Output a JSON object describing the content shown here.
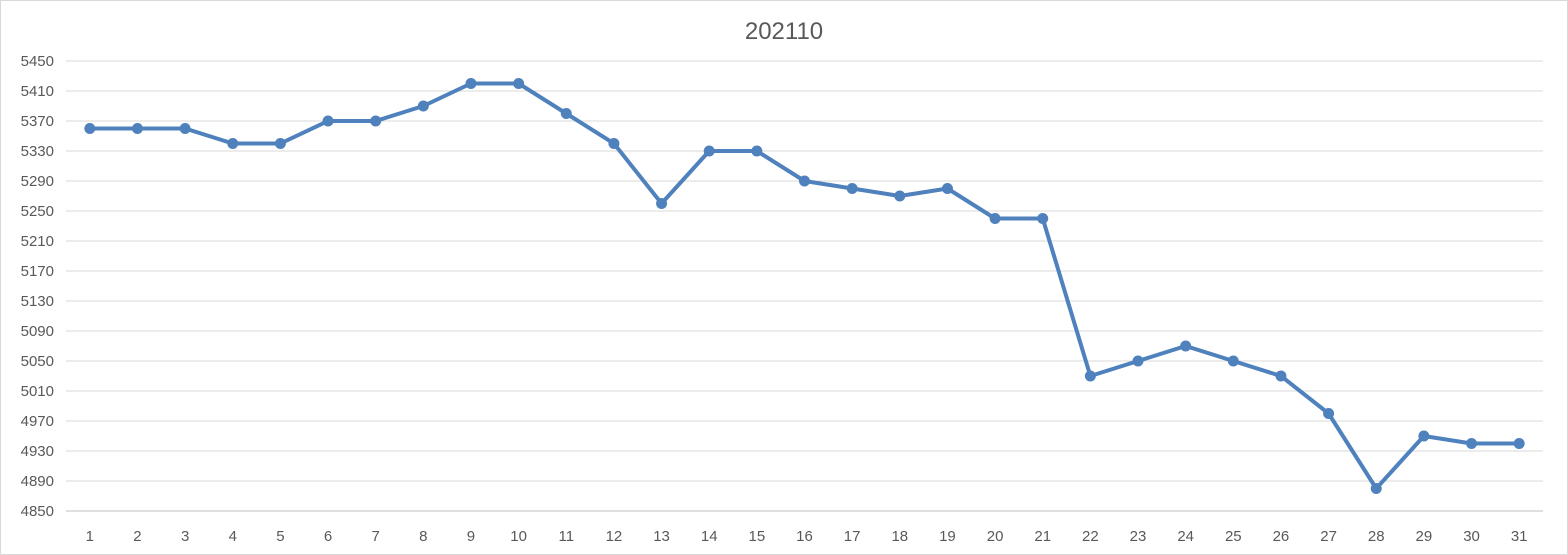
{
  "chart_data": {
    "type": "line",
    "title": "202110",
    "xlabel": "",
    "ylabel": "",
    "ylim": [
      4850,
      5450
    ],
    "yticks": [
      "4850",
      "4890",
      "4930",
      "4970",
      "5010",
      "5050",
      "5090",
      "5130",
      "5170",
      "5210",
      "5250",
      "5290",
      "5330",
      "5370",
      "5410",
      "5450"
    ],
    "x": [
      "1",
      "2",
      "3",
      "4",
      "5",
      "6",
      "7",
      "8",
      "9",
      "10",
      "11",
      "12",
      "13",
      "14",
      "15",
      "16",
      "17",
      "18",
      "19",
      "20",
      "21",
      "22",
      "23",
      "24",
      "25",
      "26",
      "27",
      "28",
      "29",
      "30",
      "31"
    ],
    "series": [
      {
        "values": [
          5360,
          5360,
          5360,
          5340,
          5340,
          5370,
          5370,
          5390,
          5420,
          5420,
          5380,
          5340,
          5260,
          5330,
          5330,
          5290,
          5280,
          5270,
          5280,
          5240,
          5240,
          5030,
          5050,
          5070,
          5050,
          5030,
          4980,
          4880,
          4950,
          4940,
          4940
        ]
      }
    ],
    "grid": true,
    "legend": "none",
    "colors": {
      "line": "#4f81bd",
      "grid": "#d9d9d9",
      "text": "#595959"
    }
  }
}
